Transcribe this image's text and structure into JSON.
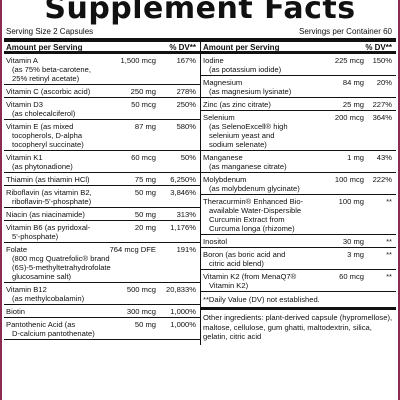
{
  "panel": {
    "title": "Supplement Facts",
    "serving_size": "Serving Size 2 Capsules",
    "servings_per_container": "Servings per Container 60",
    "column_header": {
      "left": "Amount per Serving",
      "dv": "% DV**"
    },
    "left_rows": [
      {
        "name": "Vitamin A",
        "amount": "1,500 mcg",
        "dv": "167%",
        "notes": [
          "(as 75% beta-carotene,",
          "25% retinyl acetate)"
        ]
      },
      {
        "name": "Vitamin C (ascorbic acid)",
        "amount": "250 mg",
        "dv": "278%",
        "notes": []
      },
      {
        "name": "Vitamin D3",
        "amount": "50 mcg",
        "dv": "250%",
        "notes": [
          "(as cholecalciferol)"
        ]
      },
      {
        "name": "Vitamin E (as mixed",
        "amount": "87 mg",
        "dv": "580%",
        "notes": [
          "tocopherols, D-alpha",
          "tocopheryl succinate)"
        ]
      },
      {
        "name": "Vitamin K1",
        "amount": "60 mcg",
        "dv": "50%",
        "notes": [
          "(as phytonadione)"
        ]
      },
      {
        "name": "Thiamin (as thiamin HCl)",
        "amount": "75 mg",
        "dv": "6,250%",
        "notes": []
      },
      {
        "name": "Riboflavin (as vitamin B2,",
        "amount": "50 mg",
        "dv": "3,846%",
        "notes": [
          "riboflavin-5'-phosphate)"
        ]
      },
      {
        "name": "Niacin (as niacinamide)",
        "amount": "50 mg",
        "dv": "313%",
        "notes": []
      },
      {
        "name": "Vitamin B6 (as pyridoxal-",
        "amount": "20 mg",
        "dv": "1,176%",
        "notes": [
          "5'-phosphate)"
        ]
      },
      {
        "name": "Folate",
        "amount": "764 mcg DFE",
        "dv": "191%",
        "notes": [
          "(800 mcg Quatrefolic® brand",
          "(6S)-5-methyltetrahydrofolate",
          "glucosamine salt)"
        ]
      },
      {
        "name": "Vitamin B12",
        "amount": "500 mcg",
        "dv": "20,833%",
        "notes": [
          "(as methylcobalamin)"
        ]
      },
      {
        "name": "Biotin",
        "amount": "300 mcg",
        "dv": "1,000%",
        "notes": []
      },
      {
        "name": "Pantothenic Acid (as",
        "amount": "50 mg",
        "dv": "1,000%",
        "notes": [
          "D-calcium pantothenate)"
        ]
      }
    ],
    "right_rows": [
      {
        "name": "Iodine",
        "amount": "225 mcg",
        "dv": "150%",
        "notes": [
          "(as potassium iodide)"
        ]
      },
      {
        "name": "Magnesium",
        "amount": "84 mg",
        "dv": "20%",
        "notes": [
          "(as magnesium lysinate)"
        ]
      },
      {
        "name": "Zinc (as zinc citrate)",
        "amount": "25 mg",
        "dv": "227%",
        "notes": []
      },
      {
        "name": "Selenium",
        "amount": "200 mcg",
        "dv": "364%",
        "notes": [
          "(as SelenoExcell® high",
          "selenium yeast and",
          "sodium selenate)"
        ]
      },
      {
        "name": "Manganese",
        "amount": "1 mg",
        "dv": "43%",
        "notes": [
          "(as manganese citrate)"
        ]
      },
      {
        "name": "Molybdenum",
        "amount": "100 mcg",
        "dv": "222%",
        "notes": [
          "(as molybdenum glycinate)"
        ]
      },
      {
        "name": "Theracurmin® Enhanced Bio-",
        "amount": "100 mg",
        "dv": "**",
        "notes": [
          "available Water-Dispersible",
          "Curcumin Extract from",
          "Curcuma longa (rhizome)"
        ]
      },
      {
        "name": "Inositol",
        "amount": "30 mg",
        "dv": "**",
        "notes": []
      },
      {
        "name": "Boron (as boric acid and",
        "amount": "3 mg",
        "dv": "**",
        "notes": [
          "citric acid blend)"
        ]
      },
      {
        "name": "Vitamin K2 (from MenaQ7®",
        "amount": "60 mcg",
        "dv": "**",
        "notes": [
          "Vitamin K2)"
        ]
      }
    ],
    "footnote": "**Daily Value (DV) not established.",
    "other_ingredients": "Other ingredients: plant-derived capsule (hypromellose), maltose, cellulose, gum ghatti, maltodextrin, silica, gelatin, citric acid",
    "colors": {
      "border": "#8b2b52",
      "text": "#111111",
      "background": "#ffffff"
    }
  }
}
